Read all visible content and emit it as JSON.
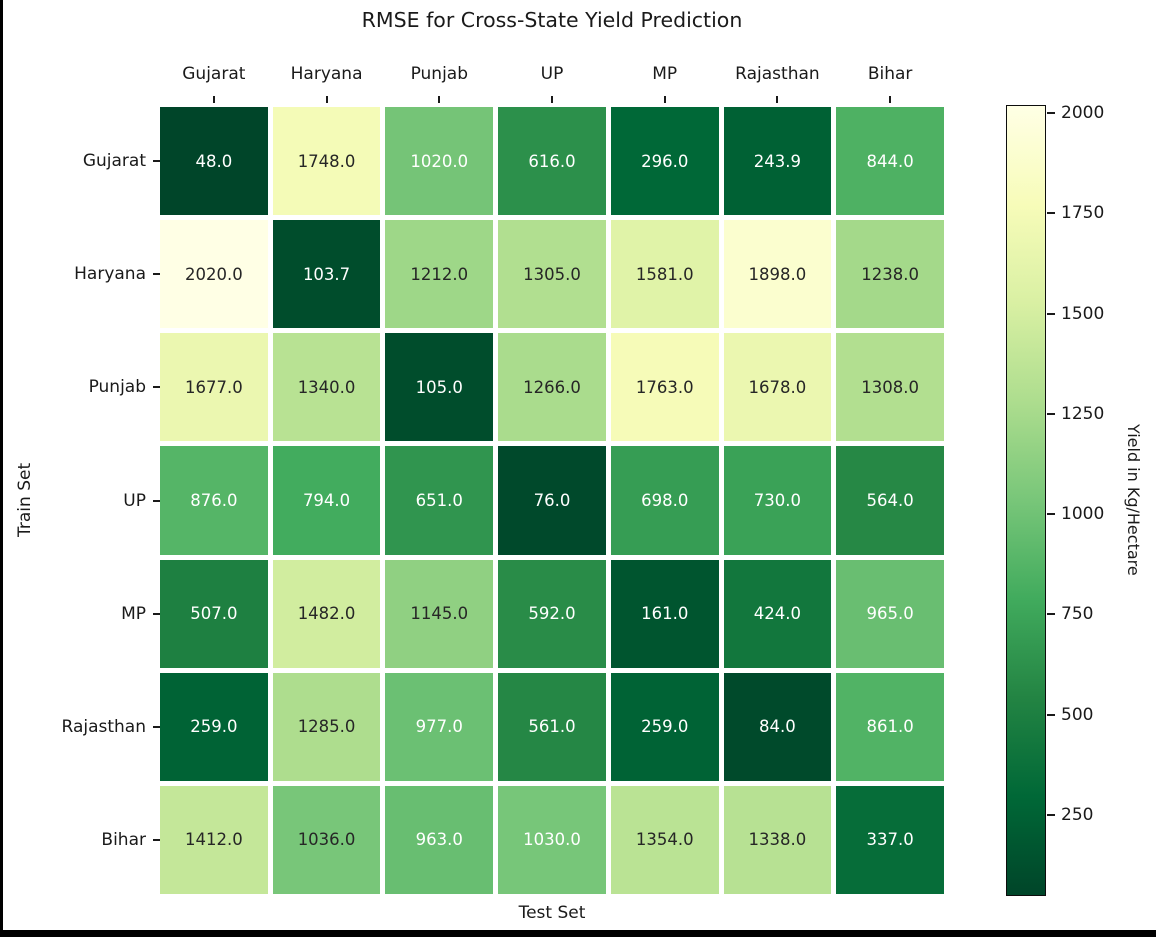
{
  "chart_data": {
    "type": "heatmap",
    "title": "RMSE for Cross-State Yield Prediction",
    "xlabel": "Test Set",
    "ylabel": "Train Set",
    "colorbar_label": "Yield in Kg/Hectare",
    "columns": [
      "Gujarat",
      "Haryana",
      "Punjab",
      "UP",
      "MP",
      "Rajasthan",
      "Bihar"
    ],
    "rows": [
      "Gujarat",
      "Haryana",
      "Punjab",
      "UP",
      "MP",
      "Rajasthan",
      "Bihar"
    ],
    "values": [
      [
        48.0,
        1748.0,
        1020.0,
        616.0,
        296.0,
        243.9,
        844.0
      ],
      [
        2020.0,
        103.7,
        1212.0,
        1305.0,
        1581.0,
        1898.0,
        1238.0
      ],
      [
        1677.0,
        1340.0,
        105.0,
        1266.0,
        1763.0,
        1678.0,
        1308.0
      ],
      [
        876.0,
        794.0,
        651.0,
        76.0,
        698.0,
        730.0,
        564.0
      ],
      [
        507.0,
        1482.0,
        1145.0,
        592.0,
        161.0,
        424.0,
        965.0
      ],
      [
        259.0,
        1285.0,
        977.0,
        561.0,
        259.0,
        84.0,
        861.0
      ],
      [
        1412.0,
        1036.0,
        963.0,
        1030.0,
        1354.0,
        1338.0,
        337.0
      ]
    ],
    "annotation_text_tone": [
      [
        "light",
        "dark",
        "light",
        "light",
        "light",
        "light",
        "light"
      ],
      [
        "dark",
        "light",
        "dark",
        "dark",
        "dark",
        "dark",
        "dark"
      ],
      [
        "dark",
        "dark",
        "light",
        "dark",
        "dark",
        "dark",
        "dark"
      ],
      [
        "light",
        "light",
        "light",
        "light",
        "light",
        "light",
        "light"
      ],
      [
        "light",
        "dark",
        "dark",
        "light",
        "light",
        "light",
        "light"
      ],
      [
        "light",
        "dark",
        "light",
        "light",
        "light",
        "light",
        "light"
      ],
      [
        "dark",
        "dark",
        "light",
        "light",
        "dark",
        "dark",
        "light"
      ]
    ],
    "annotation_colors": {
      "light": "#ffffff",
      "dark": "#262626"
    },
    "value_decimals": 1,
    "vmin": 48.0,
    "vmax": 2020.0,
    "colormap": {
      "name": "YlGn_r",
      "ylgn_stops": [
        "#ffffe5",
        "#f7fcb9",
        "#d9f0a3",
        "#addd8e",
        "#78c679",
        "#41ab5d",
        "#238443",
        "#006837",
        "#004529"
      ],
      "reversed": true
    },
    "colorbar_ticks": [
      250,
      500,
      750,
      1000,
      1250,
      1500,
      1750,
      2000
    ],
    "grid_line_color": "#ffffff",
    "legend_position": "right-colorbar"
  }
}
